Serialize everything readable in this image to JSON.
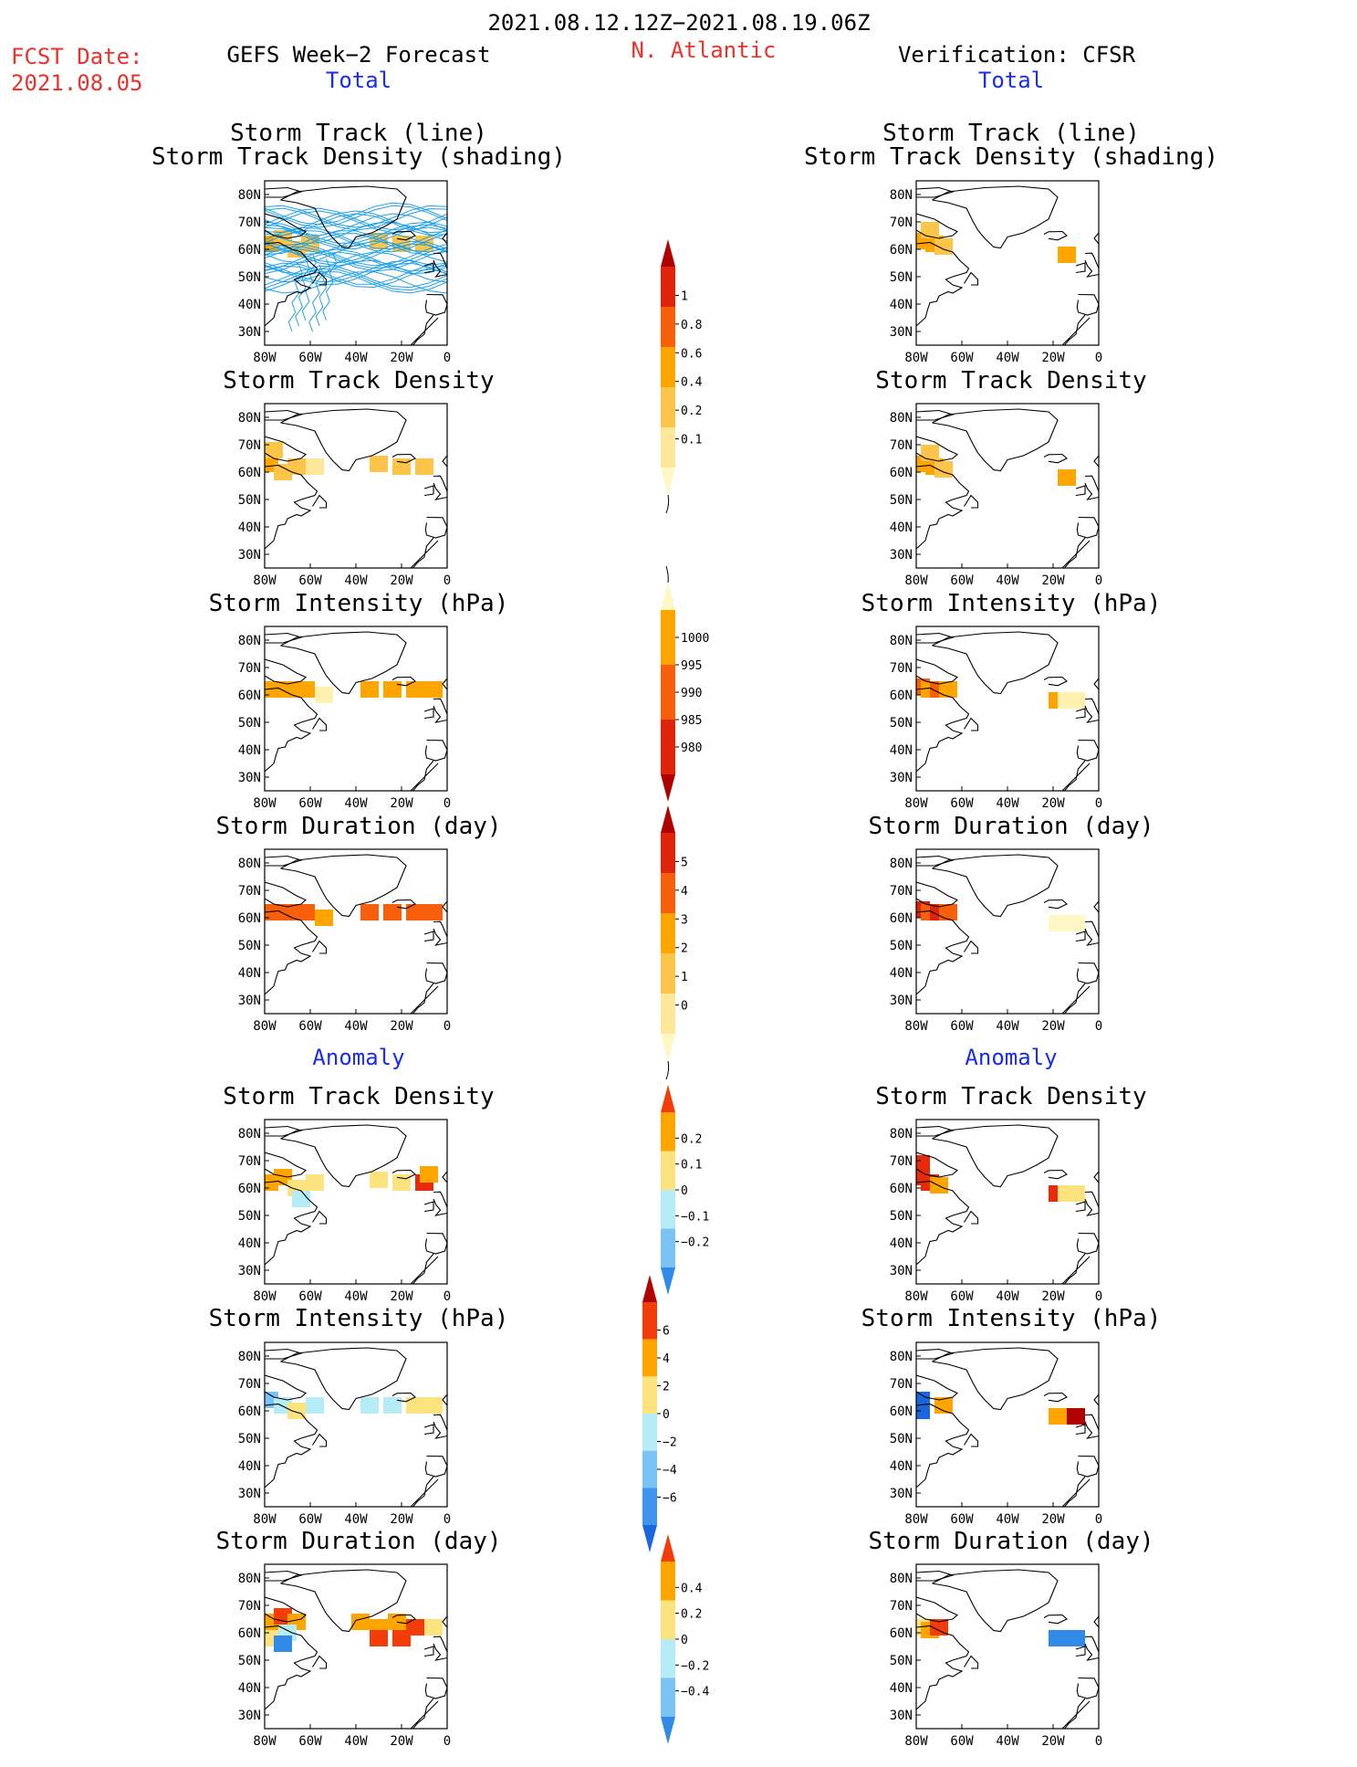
{
  "header": {
    "period": "2021.08.12.12Z−2021.08.19.06Z",
    "fcst_label": "FCST Date:",
    "fcst_date": "2021.08.05",
    "left_title": "GEFS Week−2 Forecast",
    "region": "N. Atlantic",
    "right_title": "Verification: CFSR",
    "total_label": "Total",
    "anomaly_label": "Anomaly"
  },
  "colors": {
    "text_red": "#e8322a",
    "text_blue": "#1a2cf0",
    "track_line": "#1fa0e6"
  },
  "map_axes": {
    "lat_ticks": [
      "80N",
      "70N",
      "60N",
      "50N",
      "40N",
      "30N"
    ],
    "lon_ticks": [
      "80W",
      "60W",
      "40W",
      "20W",
      "0"
    ],
    "lat_range": [
      25,
      85
    ],
    "lon_range": [
      -80,
      0
    ]
  },
  "panel_titles": {
    "track_line": "Storm Track (line)",
    "track_shading": "Storm Track Density (shading)",
    "density": "Storm Track Density",
    "intensity": "Storm Intensity (hPa)",
    "duration": "Storm Duration (day)"
  },
  "chart_data": [
    {
      "type": "heatmap",
      "title": "Storm Track (line) / Storm Track Density (shading)",
      "source": "GEFS Week-2 Forecast",
      "section": "Total",
      "scale": "density",
      "tracks": true,
      "cells": [
        [
          -78,
          62,
          0.4
        ],
        [
          -72,
          64,
          0.3
        ],
        [
          -66,
          60,
          0.2
        ],
        [
          -60,
          62,
          0.2
        ],
        [
          -30,
          63,
          0.2
        ],
        [
          -20,
          62,
          0.2
        ],
        [
          -10,
          62,
          0.3
        ]
      ]
    },
    {
      "type": "heatmap",
      "title": "Storm Track (line) / Storm Track Density (shading)",
      "source": "Verification: CFSR",
      "section": "Total",
      "scale": "density",
      "tracks": false,
      "cells": [
        [
          -78,
          63,
          0.5
        ],
        [
          -72,
          62,
          0.4
        ],
        [
          -68,
          61,
          0.3
        ],
        [
          -74,
          67,
          0.2
        ],
        [
          -14,
          58,
          0.5
        ]
      ]
    },
    {
      "type": "heatmap",
      "title": "Storm Track Density",
      "source": "GEFS Week-2 Forecast",
      "section": "Total",
      "scale": "density",
      "cells": [
        [
          -78,
          63,
          0.4
        ],
        [
          -72,
          60,
          0.3
        ],
        [
          -66,
          62,
          0.2
        ],
        [
          -58,
          62,
          0.15
        ],
        [
          -30,
          63,
          0.3
        ],
        [
          -20,
          62,
          0.3
        ],
        [
          -10,
          62,
          0.25
        ],
        [
          -76,
          68,
          0.2
        ]
      ]
    },
    {
      "type": "heatmap",
      "title": "Storm Track Density",
      "source": "Verification: CFSR",
      "section": "Total",
      "scale": "density",
      "cells": [
        [
          -78,
          63,
          0.5
        ],
        [
          -72,
          62,
          0.4
        ],
        [
          -68,
          61,
          0.3
        ],
        [
          -74,
          67,
          0.2
        ],
        [
          -14,
          58,
          0.5
        ]
      ]
    },
    {
      "type": "heatmap",
      "title": "Storm Intensity (hPa)",
      "source": "GEFS Week-2 Forecast",
      "section": "Total",
      "scale": "intensity",
      "cells": [
        [
          -78,
          62,
          992
        ],
        [
          -70,
          62,
          994
        ],
        [
          -62,
          62,
          994
        ],
        [
          -54,
          60,
          995
        ],
        [
          -34,
          62,
          993
        ],
        [
          -24,
          62,
          993
        ],
        [
          -14,
          62,
          993
        ],
        [
          -6,
          62,
          993
        ]
      ]
    },
    {
      "type": "heatmap",
      "title": "Storm Intensity (hPa)",
      "source": "Verification: CFSR",
      "section": "Total",
      "scale": "intensity",
      "cells": [
        [
          -78,
          63,
          986
        ],
        [
          -74,
          62,
          991
        ],
        [
          -70,
          62,
          985
        ],
        [
          -66,
          62,
          991
        ],
        [
          -18,
          58,
          994
        ],
        [
          -14,
          58,
          1000
        ],
        [
          -10,
          58,
          1000
        ]
      ]
    },
    {
      "type": "heatmap",
      "title": "Storm Duration (day)",
      "source": "GEFS Week-2 Forecast",
      "section": "Total",
      "scale": "duration",
      "cells": [
        [
          -78,
          62,
          3.5
        ],
        [
          -70,
          62,
          3.5
        ],
        [
          -62,
          62,
          3.5
        ],
        [
          -54,
          60,
          2.5
        ],
        [
          -34,
          62,
          3.5
        ],
        [
          -24,
          62,
          3.5
        ],
        [
          -14,
          62,
          3.5
        ],
        [
          -6,
          62,
          3.5
        ]
      ]
    },
    {
      "type": "heatmap",
      "title": "Storm Duration (day)",
      "source": "Verification: CFSR",
      "section": "Total",
      "scale": "duration",
      "cells": [
        [
          -78,
          63,
          4.5
        ],
        [
          -74,
          62,
          3.5
        ],
        [
          -70,
          62,
          4.5
        ],
        [
          -66,
          62,
          3.5
        ],
        [
          -18,
          58,
          0.5
        ],
        [
          -14,
          58,
          0.5
        ],
        [
          -10,
          58,
          0.5
        ]
      ]
    },
    {
      "type": "heatmap",
      "title": "Storm Track Density",
      "source": "GEFS Week-2 Forecast",
      "section": "Anomaly",
      "scale": "density_anom",
      "cells": [
        [
          -78,
          62,
          0.15
        ],
        [
          -72,
          64,
          0.15
        ],
        [
          -66,
          60,
          0.05
        ],
        [
          -58,
          62,
          0.05
        ],
        [
          -30,
          63,
          0.05
        ],
        [
          -20,
          62,
          0.05
        ],
        [
          -10,
          62,
          0.25
        ],
        [
          -8,
          65,
          0.15
        ],
        [
          -64,
          56,
          -0.05
        ]
      ]
    },
    {
      "type": "heatmap",
      "title": "Storm Track Density",
      "source": "Verification: CFSR",
      "section": "Anomaly",
      "scale": "density_anom",
      "cells": [
        [
          -78,
          64,
          0.25
        ],
        [
          -74,
          62,
          0.25
        ],
        [
          -70,
          61,
          0.15
        ],
        [
          -78,
          69,
          0.25
        ],
        [
          -18,
          58,
          0.25
        ],
        [
          -14,
          58,
          0.05
        ],
        [
          -10,
          58,
          0.05
        ]
      ]
    },
    {
      "type": "heatmap",
      "title": "Storm Intensity (hPa)",
      "source": "GEFS Week-2 Forecast",
      "section": "Anomaly",
      "scale": "intensity_anom",
      "cells": [
        [
          -78,
          64,
          -3
        ],
        [
          -72,
          62,
          -1
        ],
        [
          -66,
          60,
          1
        ],
        [
          -58,
          62,
          -1
        ],
        [
          -34,
          62,
          -1
        ],
        [
          -24,
          62,
          -1
        ],
        [
          -14,
          62,
          1
        ],
        [
          -6,
          62,
          1
        ]
      ]
    },
    {
      "type": "heatmap",
      "title": "Storm Intensity (hPa)",
      "source": "Verification: CFSR",
      "section": "Anomaly",
      "scale": "intensity_anom",
      "cells": [
        [
          -78,
          64,
          -7
        ],
        [
          -78,
          60,
          -5
        ],
        [
          -68,
          62,
          3
        ],
        [
          -18,
          58,
          3
        ],
        [
          -14,
          58,
          3
        ],
        [
          -10,
          58,
          7
        ]
      ]
    },
    {
      "type": "heatmap",
      "title": "Storm Duration (day)",
      "source": "GEFS Week-2 Forecast",
      "section": "Anomaly",
      "scale": "duration_anom",
      "cells": [
        [
          -78,
          64,
          0.3
        ],
        [
          -72,
          66,
          0.45
        ],
        [
          -66,
          64,
          0.3
        ],
        [
          -78,
          58,
          0.1
        ],
        [
          -70,
          60,
          -0.1
        ],
        [
          -38,
          64,
          0.3
        ],
        [
          -30,
          62,
          0.3
        ],
        [
          -22,
          64,
          0.3
        ],
        [
          -14,
          62,
          0.45
        ],
        [
          -6,
          62,
          0.1
        ],
        [
          -30,
          58,
          0.45
        ],
        [
          -20,
          58,
          0.45
        ],
        [
          -72,
          56,
          -0.3
        ]
      ]
    },
    {
      "type": "heatmap",
      "title": "Storm Duration (day)",
      "source": "Verification: CFSR",
      "section": "Anomaly",
      "scale": "duration_anom",
      "cells": [
        [
          -78,
          62,
          0.1
        ],
        [
          -74,
          61,
          0.3
        ],
        [
          -70,
          62,
          0.45
        ],
        [
          -18,
          58,
          -0.3
        ],
        [
          -10,
          58,
          -0.3
        ]
      ]
    }
  ],
  "colorbars": [
    {
      "name": "density",
      "labels": [
        "1",
        "0.8",
        "0.6",
        "0.4",
        "0.2",
        "0.1"
      ],
      "colors": [
        "#b00000",
        "#e0240a",
        "#f75f0a",
        "#ffa500",
        "#fcc54a",
        "#fde89a",
        "#fff7c4"
      ]
    },
    {
      "name": "intensity",
      "labels": [
        "1000",
        "995",
        "990",
        "985",
        "980"
      ],
      "colors": [
        "#fff7c4",
        "#ffa500",
        "#f75f0a",
        "#e0240a",
        "#b00000"
      ]
    },
    {
      "name": "duration",
      "labels": [
        "5",
        "4",
        "3",
        "2",
        "1",
        "0"
      ],
      "colors": [
        "#b00000",
        "#e0240a",
        "#f75f0a",
        "#ffa500",
        "#fcc54a",
        "#fde89a",
        "#fff7c4"
      ]
    },
    {
      "name": "density_anom",
      "labels": [
        "0.2",
        "0.1",
        "0",
        "−0.1",
        "−0.2"
      ],
      "colors": [
        "#f23c0a",
        "#ffa500",
        "#fde37d",
        "#b6ecf5",
        "#7cc3f5",
        "#2f8ae8"
      ]
    },
    {
      "name": "intensity_anom",
      "labels": [
        "6",
        "4",
        "2",
        "0",
        "−2",
        "−4",
        "−6"
      ],
      "colors": [
        "#b00000",
        "#f23c0a",
        "#ffa500",
        "#fde37d",
        "#b6ecf5",
        "#7cc3f5",
        "#3f95ee",
        "#1a66dc"
      ]
    },
    {
      "name": "duration_anom",
      "labels": [
        "0.4",
        "0.2",
        "0",
        "−0.2",
        "−0.4"
      ],
      "colors": [
        "#f23c0a",
        "#ffa500",
        "#fde37d",
        "#b6ecf5",
        "#7cc3f5",
        "#2f8ae8"
      ]
    }
  ]
}
